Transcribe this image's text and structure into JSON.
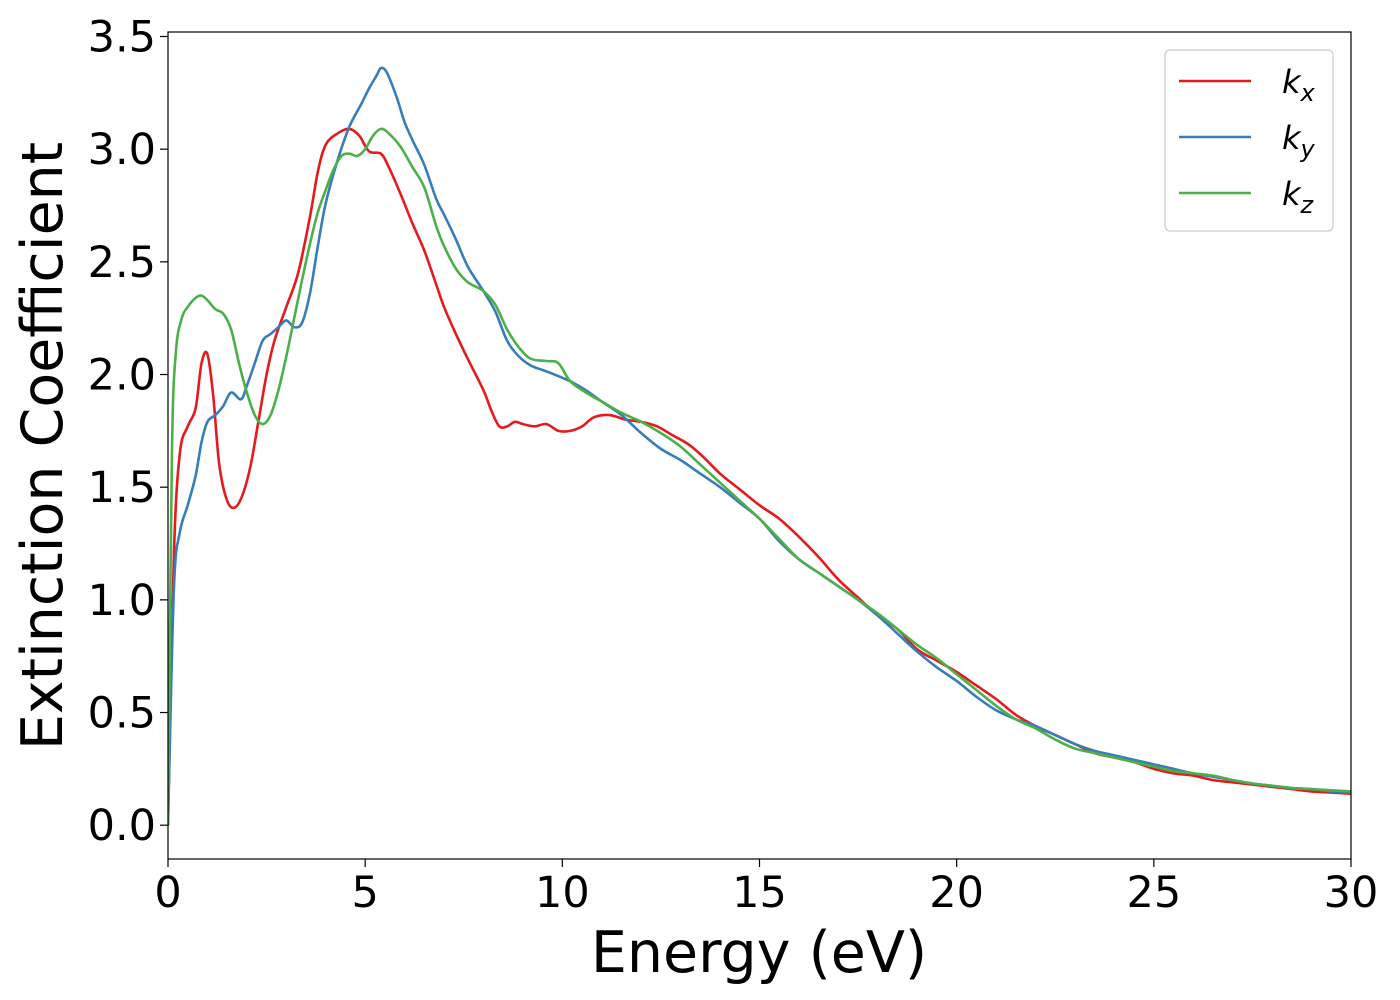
{
  "chart_data": {
    "type": "line",
    "title": "",
    "xlabel": "Energy (eV)",
    "ylabel": "Extinction Coefficient",
    "xlim": [
      0,
      30
    ],
    "ylim": [
      -0.15,
      3.52
    ],
    "x_ticks": [
      "0",
      "5",
      "10",
      "15",
      "20",
      "25",
      "30"
    ],
    "y_ticks": [
      "0.0",
      "0.5",
      "1.0",
      "1.5",
      "2.0",
      "2.5",
      "3.0",
      "3.5"
    ],
    "grid": false,
    "legend_position": "top-right",
    "series": [
      {
        "name": "k",
        "subscript": "x",
        "color": "#e41a1c",
        "points": [
          [
            0,
            0
          ],
          [
            0.15,
            1.2
          ],
          [
            0.3,
            1.65
          ],
          [
            0.5,
            1.77
          ],
          [
            0.7,
            1.85
          ],
          [
            0.85,
            2.05
          ],
          [
            1.0,
            2.09
          ],
          [
            1.15,
            1.9
          ],
          [
            1.3,
            1.6
          ],
          [
            1.5,
            1.44
          ],
          [
            1.7,
            1.41
          ],
          [
            1.9,
            1.47
          ],
          [
            2.1,
            1.6
          ],
          [
            2.3,
            1.8
          ],
          [
            2.5,
            2.0
          ],
          [
            2.7,
            2.15
          ],
          [
            3.0,
            2.3
          ],
          [
            3.3,
            2.45
          ],
          [
            3.6,
            2.7
          ],
          [
            3.8,
            2.9
          ],
          [
            4.0,
            3.02
          ],
          [
            4.3,
            3.07
          ],
          [
            4.6,
            3.09
          ],
          [
            4.85,
            3.06
          ],
          [
            5.1,
            2.99
          ],
          [
            5.4,
            2.98
          ],
          [
            5.6,
            2.92
          ],
          [
            5.9,
            2.8
          ],
          [
            6.2,
            2.67
          ],
          [
            6.5,
            2.55
          ],
          [
            6.8,
            2.4
          ],
          [
            7.0,
            2.3
          ],
          [
            7.3,
            2.18
          ],
          [
            7.6,
            2.07
          ],
          [
            8.0,
            1.93
          ],
          [
            8.2,
            1.84
          ],
          [
            8.4,
            1.77
          ],
          [
            8.6,
            1.77
          ],
          [
            8.8,
            1.79
          ],
          [
            9.0,
            1.78
          ],
          [
            9.3,
            1.77
          ],
          [
            9.6,
            1.78
          ],
          [
            9.9,
            1.75
          ],
          [
            10.2,
            1.75
          ],
          [
            10.5,
            1.77
          ],
          [
            10.8,
            1.81
          ],
          [
            11.2,
            1.82
          ],
          [
            11.6,
            1.8
          ],
          [
            12.0,
            1.79
          ],
          [
            12.4,
            1.77
          ],
          [
            12.8,
            1.73
          ],
          [
            13.2,
            1.69
          ],
          [
            13.6,
            1.63
          ],
          [
            14.0,
            1.56
          ],
          [
            14.5,
            1.49
          ],
          [
            15.0,
            1.42
          ],
          [
            15.5,
            1.36
          ],
          [
            16.0,
            1.28
          ],
          [
            16.5,
            1.19
          ],
          [
            17.0,
            1.09
          ],
          [
            17.5,
            1.01
          ],
          [
            18.0,
            0.93
          ],
          [
            18.5,
            0.87
          ],
          [
            19.0,
            0.78
          ],
          [
            19.5,
            0.73
          ],
          [
            20.0,
            0.68
          ],
          [
            20.5,
            0.62
          ],
          [
            21.0,
            0.56
          ],
          [
            21.5,
            0.49
          ],
          [
            22.0,
            0.44
          ],
          [
            22.5,
            0.4
          ],
          [
            23.0,
            0.36
          ],
          [
            23.5,
            0.32
          ],
          [
            24.0,
            0.3
          ],
          [
            24.5,
            0.28
          ],
          [
            25.0,
            0.25
          ],
          [
            25.5,
            0.23
          ],
          [
            26.0,
            0.22
          ],
          [
            26.5,
            0.2
          ],
          [
            27.0,
            0.19
          ],
          [
            27.5,
            0.18
          ],
          [
            28.0,
            0.17
          ],
          [
            28.5,
            0.16
          ],
          [
            29.0,
            0.15
          ],
          [
            29.5,
            0.145
          ],
          [
            30.0,
            0.14
          ]
        ]
      },
      {
        "name": "k",
        "subscript": "y",
        "color": "#377eb8",
        "points": [
          [
            0,
            0
          ],
          [
            0.15,
            1.05
          ],
          [
            0.3,
            1.3
          ],
          [
            0.5,
            1.42
          ],
          [
            0.7,
            1.55
          ],
          [
            0.85,
            1.7
          ],
          [
            1.0,
            1.79
          ],
          [
            1.2,
            1.82
          ],
          [
            1.4,
            1.86
          ],
          [
            1.6,
            1.92
          ],
          [
            1.85,
            1.89
          ],
          [
            2.0,
            1.95
          ],
          [
            2.2,
            2.05
          ],
          [
            2.4,
            2.15
          ],
          [
            2.6,
            2.18
          ],
          [
            2.8,
            2.21
          ],
          [
            3.0,
            2.24
          ],
          [
            3.2,
            2.21
          ],
          [
            3.4,
            2.23
          ],
          [
            3.6,
            2.36
          ],
          [
            3.8,
            2.57
          ],
          [
            4.0,
            2.76
          ],
          [
            4.3,
            2.95
          ],
          [
            4.6,
            3.1
          ],
          [
            4.9,
            3.2
          ],
          [
            5.1,
            3.27
          ],
          [
            5.3,
            3.33
          ],
          [
            5.4,
            3.36
          ],
          [
            5.55,
            3.34
          ],
          [
            5.8,
            3.23
          ],
          [
            6.0,
            3.12
          ],
          [
            6.2,
            3.04
          ],
          [
            6.5,
            2.93
          ],
          [
            6.8,
            2.78
          ],
          [
            7.0,
            2.71
          ],
          [
            7.3,
            2.6
          ],
          [
            7.6,
            2.48
          ],
          [
            8.0,
            2.37
          ],
          [
            8.3,
            2.28
          ],
          [
            8.6,
            2.15
          ],
          [
            8.9,
            2.08
          ],
          [
            9.2,
            2.04
          ],
          [
            9.5,
            2.02
          ],
          [
            9.8,
            2.0
          ],
          [
            10.2,
            1.97
          ],
          [
            10.6,
            1.93
          ],
          [
            11.0,
            1.88
          ],
          [
            11.5,
            1.82
          ],
          [
            12.0,
            1.74
          ],
          [
            12.5,
            1.67
          ],
          [
            13.0,
            1.62
          ],
          [
            13.5,
            1.56
          ],
          [
            14.0,
            1.5
          ],
          [
            14.5,
            1.43
          ],
          [
            15.0,
            1.36
          ],
          [
            15.5,
            1.26
          ],
          [
            16.0,
            1.18
          ],
          [
            16.5,
            1.12
          ],
          [
            17.0,
            1.06
          ],
          [
            17.5,
            1.0
          ],
          [
            18.0,
            0.93
          ],
          [
            18.5,
            0.85
          ],
          [
            19.0,
            0.77
          ],
          [
            19.5,
            0.7
          ],
          [
            20.0,
            0.64
          ],
          [
            20.5,
            0.57
          ],
          [
            21.0,
            0.51
          ],
          [
            21.5,
            0.47
          ],
          [
            22.0,
            0.44
          ],
          [
            22.5,
            0.4
          ],
          [
            23.0,
            0.36
          ],
          [
            23.5,
            0.33
          ],
          [
            24.0,
            0.31
          ],
          [
            24.5,
            0.29
          ],
          [
            25.0,
            0.27
          ],
          [
            25.5,
            0.25
          ],
          [
            26.0,
            0.23
          ],
          [
            26.5,
            0.215
          ],
          [
            27.0,
            0.2
          ],
          [
            27.5,
            0.185
          ],
          [
            28.0,
            0.175
          ],
          [
            28.5,
            0.165
          ],
          [
            29.0,
            0.16
          ],
          [
            29.5,
            0.15
          ],
          [
            30.0,
            0.145
          ]
        ]
      },
      {
        "name": "k",
        "subscript": "z",
        "color": "#4daf4a",
        "points": [
          [
            0,
            0
          ],
          [
            0.1,
            1.65
          ],
          [
            0.2,
            2.1
          ],
          [
            0.35,
            2.25
          ],
          [
            0.5,
            2.3
          ],
          [
            0.7,
            2.34
          ],
          [
            0.85,
            2.35
          ],
          [
            1.0,
            2.33
          ],
          [
            1.2,
            2.29
          ],
          [
            1.4,
            2.27
          ],
          [
            1.6,
            2.2
          ],
          [
            1.8,
            2.05
          ],
          [
            2.0,
            1.92
          ],
          [
            2.2,
            1.82
          ],
          [
            2.4,
            1.78
          ],
          [
            2.6,
            1.82
          ],
          [
            2.8,
            1.93
          ],
          [
            3.0,
            2.08
          ],
          [
            3.2,
            2.25
          ],
          [
            3.4,
            2.42
          ],
          [
            3.6,
            2.58
          ],
          [
            3.8,
            2.72
          ],
          [
            4.0,
            2.82
          ],
          [
            4.2,
            2.91
          ],
          [
            4.4,
            2.97
          ],
          [
            4.6,
            2.98
          ],
          [
            4.8,
            2.97
          ],
          [
            5.0,
            3.0
          ],
          [
            5.2,
            3.06
          ],
          [
            5.4,
            3.09
          ],
          [
            5.6,
            3.07
          ],
          [
            5.9,
            3.01
          ],
          [
            6.2,
            2.92
          ],
          [
            6.5,
            2.83
          ],
          [
            6.8,
            2.66
          ],
          [
            7.0,
            2.57
          ],
          [
            7.3,
            2.47
          ],
          [
            7.6,
            2.41
          ],
          [
            8.0,
            2.37
          ],
          [
            8.3,
            2.31
          ],
          [
            8.6,
            2.2
          ],
          [
            8.9,
            2.12
          ],
          [
            9.2,
            2.07
          ],
          [
            9.6,
            2.06
          ],
          [
            9.9,
            2.05
          ],
          [
            10.2,
            1.97
          ],
          [
            10.6,
            1.92
          ],
          [
            11.0,
            1.88
          ],
          [
            11.5,
            1.83
          ],
          [
            12.0,
            1.79
          ],
          [
            12.5,
            1.74
          ],
          [
            13.0,
            1.68
          ],
          [
            13.5,
            1.6
          ],
          [
            14.0,
            1.52
          ],
          [
            14.5,
            1.44
          ],
          [
            15.0,
            1.36
          ],
          [
            15.5,
            1.27
          ],
          [
            16.0,
            1.18
          ],
          [
            16.5,
            1.12
          ],
          [
            17.0,
            1.06
          ],
          [
            17.5,
            1.0
          ],
          [
            18.0,
            0.94
          ],
          [
            18.5,
            0.87
          ],
          [
            19.0,
            0.8
          ],
          [
            19.5,
            0.74
          ],
          [
            20.0,
            0.67
          ],
          [
            20.5,
            0.6
          ],
          [
            21.0,
            0.53
          ],
          [
            21.5,
            0.47
          ],
          [
            22.0,
            0.43
          ],
          [
            22.5,
            0.38
          ],
          [
            23.0,
            0.34
          ],
          [
            23.5,
            0.32
          ],
          [
            24.0,
            0.3
          ],
          [
            24.5,
            0.28
          ],
          [
            25.0,
            0.26
          ],
          [
            25.5,
            0.24
          ],
          [
            26.0,
            0.23
          ],
          [
            26.5,
            0.22
          ],
          [
            27.0,
            0.2
          ],
          [
            27.5,
            0.185
          ],
          [
            28.0,
            0.175
          ],
          [
            28.5,
            0.165
          ],
          [
            29.0,
            0.16
          ],
          [
            29.5,
            0.155
          ],
          [
            30.0,
            0.15
          ]
        ]
      }
    ]
  }
}
